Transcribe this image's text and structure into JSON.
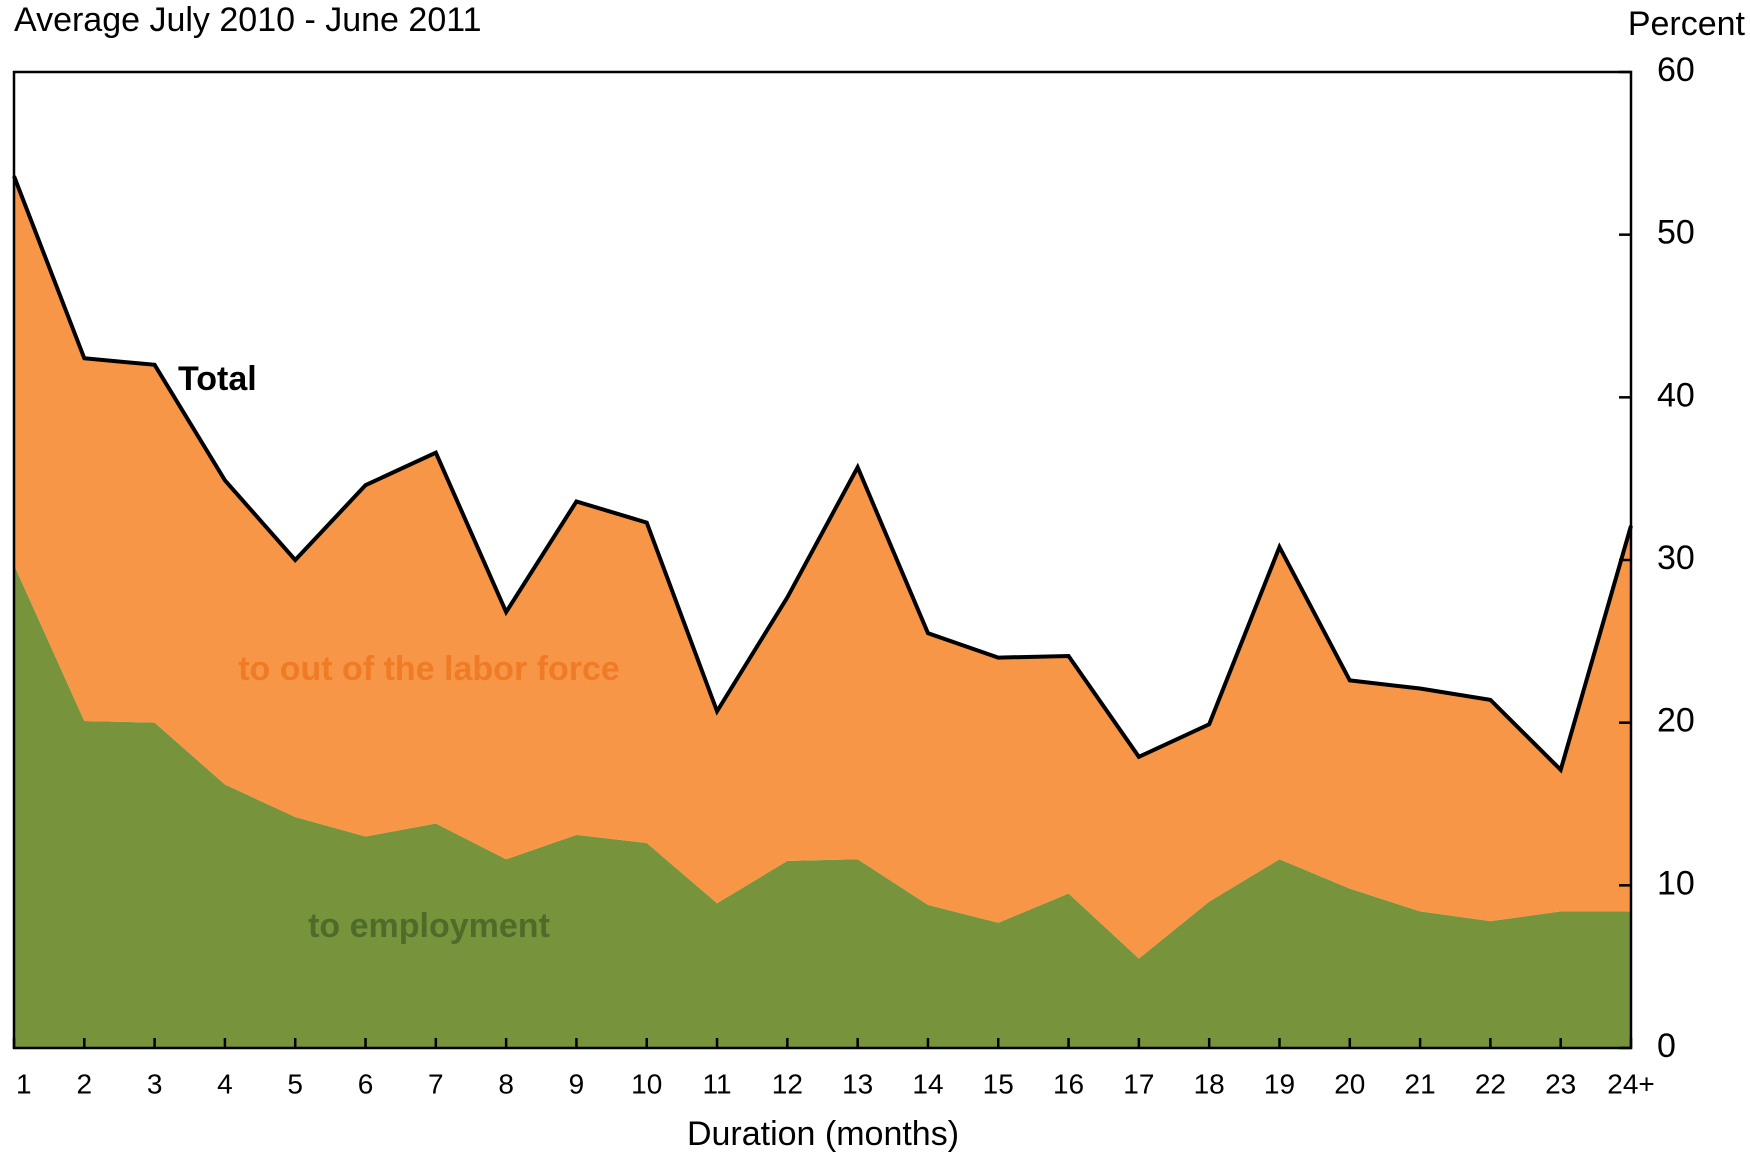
{
  "chart_data": {
    "type": "stacked_area",
    "title": "Average July 2010 - June 2011",
    "y_axis_label": "Percent",
    "x_axis_label": "Duration (months)",
    "categories": [
      "1",
      "2",
      "3",
      "4",
      "5",
      "6",
      "7",
      "8",
      "9",
      "10",
      "11",
      "12",
      "13",
      "14",
      "15",
      "16",
      "17",
      "18",
      "19",
      "20",
      "21",
      "22",
      "23",
      "24+"
    ],
    "series": [
      {
        "name": "to employment",
        "color": "#77933c",
        "label_color": "#4f6b2a",
        "values": [
          29.7,
          20.1,
          20.0,
          16.2,
          14.2,
          13.0,
          13.8,
          11.6,
          13.1,
          12.6,
          8.9,
          11.5,
          11.6,
          8.8,
          7.7,
          9.5,
          5.5,
          9.0,
          11.6,
          9.8,
          8.4,
          7.8,
          8.4,
          8.4
        ]
      },
      {
        "name": "to out of the labor force",
        "color": "#f79646",
        "label_color": "#f07b26",
        "values": [
          23.9,
          22.3,
          22.0,
          18.7,
          15.8,
          21.6,
          22.8,
          15.2,
          20.5,
          19.7,
          11.8,
          16.2,
          24.1,
          16.7,
          16.3,
          14.6,
          12.4,
          10.9,
          19.2,
          12.8,
          13.7,
          13.6,
          8.7,
          23.7
        ]
      }
    ],
    "total": {
      "name": "Total",
      "color": "#000000",
      "values": [
        53.6,
        42.4,
        42.0,
        34.9,
        30.0,
        34.6,
        36.6,
        26.8,
        33.6,
        32.3,
        20.7,
        27.7,
        35.7,
        25.5,
        24.0,
        24.1,
        17.9,
        19.9,
        30.8,
        22.6,
        22.1,
        21.4,
        17.1,
        32.1
      ]
    },
    "ylim": [
      0,
      60
    ],
    "yticks": [
      0,
      10,
      20,
      30,
      40,
      50,
      60
    ],
    "grid": false
  }
}
